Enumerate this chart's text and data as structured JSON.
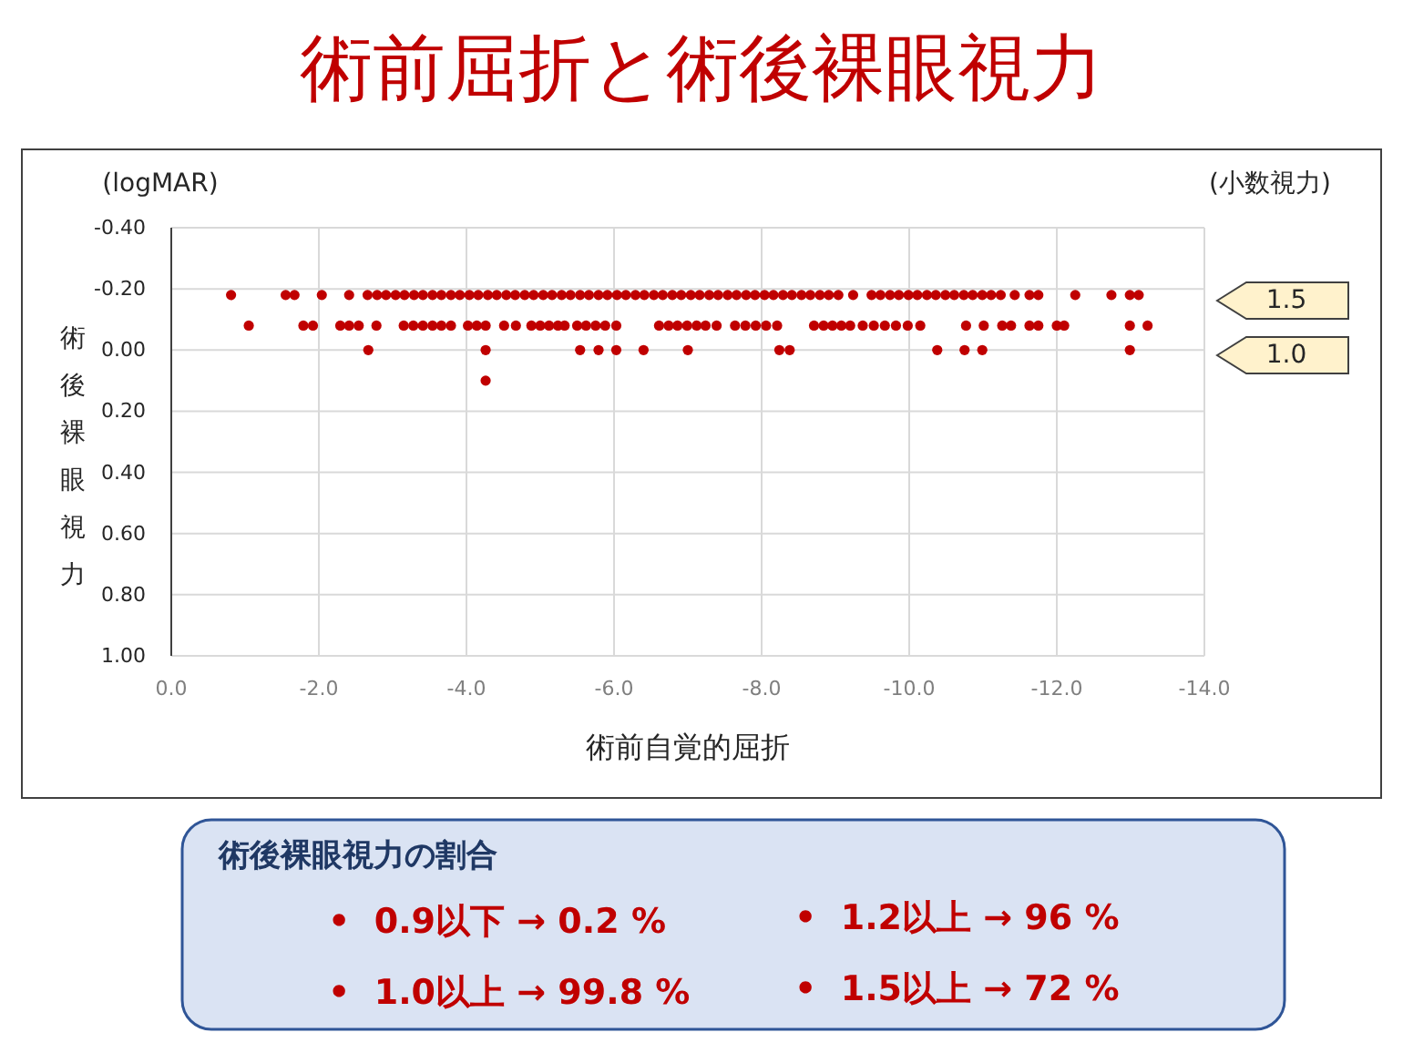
{
  "chart_data": {
    "type": "scatter",
    "title": "術前屈折と術後裸眼視力",
    "xlabel": "術前自覚的屈折",
    "ylabel": "術後裸眼視力",
    "xlim": [
      0,
      -14
    ],
    "ylim": [
      1.0,
      -0.4
    ],
    "xticks": [
      {
        "value": 0,
        "label": "0.0"
      },
      {
        "value": -2,
        "label": "-2.0"
      },
      {
        "value": -4,
        "label": "-4.0"
      },
      {
        "value": -6,
        "label": "-6.0"
      },
      {
        "value": -8,
        "label": "-8.0"
      },
      {
        "value": -10,
        "label": "-10.0"
      },
      {
        "value": -12,
        "label": "-12.0"
      },
      {
        "value": -14,
        "label": "-14.0"
      }
    ],
    "yticks": [
      {
        "value": -0.4,
        "label": "-0.40"
      },
      {
        "value": -0.2,
        "label": "-0.20"
      },
      {
        "value": 0,
        "label": "0.00"
      },
      {
        "value": 0.2,
        "label": "0.20"
      },
      {
        "value": 0.4,
        "label": "0.40"
      },
      {
        "value": 0.6,
        "label": "0.60"
      },
      {
        "value": 0.8,
        "label": "0.80"
      },
      {
        "value": 1.0,
        "label": "1.00"
      }
    ],
    "grid": true,
    "marker": "circle",
    "series": [
      {
        "color": "#c00000",
        "x": [
          -0.81,
          -1.55,
          -1.67,
          -2.04,
          -2.41,
          -2.66,
          -2.79,
          -2.91,
          -3.04,
          -3.16,
          -3.29,
          -3.41,
          -3.54,
          -3.66,
          -3.79,
          -3.91,
          -4.04,
          -4.16,
          -4.29,
          -4.41,
          -4.54,
          -4.66,
          -4.79,
          -4.91,
          -5.04,
          -5.16,
          -5.29,
          -5.41,
          -5.54,
          -5.66,
          -5.79,
          -5.91,
          -6.04,
          -6.16,
          -6.29,
          -6.41,
          -6.54,
          -6.66,
          -6.79,
          -6.91,
          -7.04,
          -7.16,
          -7.29,
          -7.41,
          -7.54,
          -7.66,
          -7.79,
          -7.91,
          -8.04,
          -8.16,
          -8.29,
          -8.41,
          -8.54,
          -8.66,
          -8.79,
          -8.91,
          -9.04,
          -9.24,
          -9.49,
          -9.61,
          -9.74,
          -9.86,
          -9.99,
          -10.11,
          -10.24,
          -10.36,
          -10.49,
          -10.61,
          -10.74,
          -10.86,
          -10.99,
          -11.11,
          -11.24,
          -11.43,
          -11.63,
          -11.75,
          -12.25,
          -12.74,
          -12.99,
          -13.11,
          -1.05,
          -1.79,
          -1.92,
          -2.29,
          -2.41,
          -2.54,
          -2.78,
          -3.15,
          -3.28,
          -3.41,
          -3.54,
          -3.66,
          -3.79,
          -4.02,
          -4.14,
          -4.26,
          -4.51,
          -4.67,
          -4.88,
          -5.0,
          -5.12,
          -5.24,
          -5.33,
          -5.5,
          -5.62,
          -5.75,
          -5.88,
          -6.03,
          -6.61,
          -6.74,
          -6.86,
          -6.99,
          -7.12,
          -7.24,
          -7.39,
          -7.64,
          -7.78,
          -7.92,
          -8.06,
          -8.21,
          -8.71,
          -8.84,
          -8.96,
          -9.08,
          -9.2,
          -9.37,
          -9.52,
          -9.67,
          -9.82,
          -9.98,
          -10.15,
          -10.77,
          -11.01,
          -11.26,
          -11.38,
          -11.63,
          -11.75,
          -12.0,
          -12.1,
          -12.99,
          -13.23,
          -2.67,
          -4.26,
          -5.54,
          -5.79,
          -6.03,
          -6.4,
          -7.0,
          -8.24,
          -8.38,
          -10.38,
          -10.75,
          -10.99,
          -12.99,
          -4.26
        ],
        "values": [
          -0.18,
          -0.18,
          -0.18,
          -0.18,
          -0.18,
          -0.18,
          -0.18,
          -0.18,
          -0.18,
          -0.18,
          -0.18,
          -0.18,
          -0.18,
          -0.18,
          -0.18,
          -0.18,
          -0.18,
          -0.18,
          -0.18,
          -0.18,
          -0.18,
          -0.18,
          -0.18,
          -0.18,
          -0.18,
          -0.18,
          -0.18,
          -0.18,
          -0.18,
          -0.18,
          -0.18,
          -0.18,
          -0.18,
          -0.18,
          -0.18,
          -0.18,
          -0.18,
          -0.18,
          -0.18,
          -0.18,
          -0.18,
          -0.18,
          -0.18,
          -0.18,
          -0.18,
          -0.18,
          -0.18,
          -0.18,
          -0.18,
          -0.18,
          -0.18,
          -0.18,
          -0.18,
          -0.18,
          -0.18,
          -0.18,
          -0.18,
          -0.18,
          -0.18,
          -0.18,
          -0.18,
          -0.18,
          -0.18,
          -0.18,
          -0.18,
          -0.18,
          -0.18,
          -0.18,
          -0.18,
          -0.18,
          -0.18,
          -0.18,
          -0.18,
          -0.18,
          -0.18,
          -0.18,
          -0.18,
          -0.18,
          -0.18,
          -0.18,
          -0.08,
          -0.08,
          -0.08,
          -0.08,
          -0.08,
          -0.08,
          -0.08,
          -0.08,
          -0.08,
          -0.08,
          -0.08,
          -0.08,
          -0.08,
          -0.08,
          -0.08,
          -0.08,
          -0.08,
          -0.08,
          -0.08,
          -0.08,
          -0.08,
          -0.08,
          -0.08,
          -0.08,
          -0.08,
          -0.08,
          -0.08,
          -0.08,
          -0.08,
          -0.08,
          -0.08,
          -0.08,
          -0.08,
          -0.08,
          -0.08,
          -0.08,
          -0.08,
          -0.08,
          -0.08,
          -0.08,
          -0.08,
          -0.08,
          -0.08,
          -0.08,
          -0.08,
          -0.08,
          -0.08,
          -0.08,
          -0.08,
          -0.08,
          -0.08,
          -0.08,
          -0.08,
          -0.08,
          -0.08,
          -0.08,
          -0.08,
          -0.08,
          -0.08,
          -0.08,
          -0.08,
          0,
          0,
          0,
          0,
          0,
          0,
          0,
          0,
          0,
          0,
          0,
          0,
          0,
          0.1
        ]
      }
    ],
    "annotations": [
      "(logMAR)",
      "(小数視力)",
      "1.5",
      "1.0",
      "術後裸眼視力の割合",
      "•  0.9以下 → 0.2 %",
      "•  1.0以上 → 99.8 %",
      "•  1.2以上 → 96 %",
      "•  1.5以上 → 72 %"
    ]
  }
}
